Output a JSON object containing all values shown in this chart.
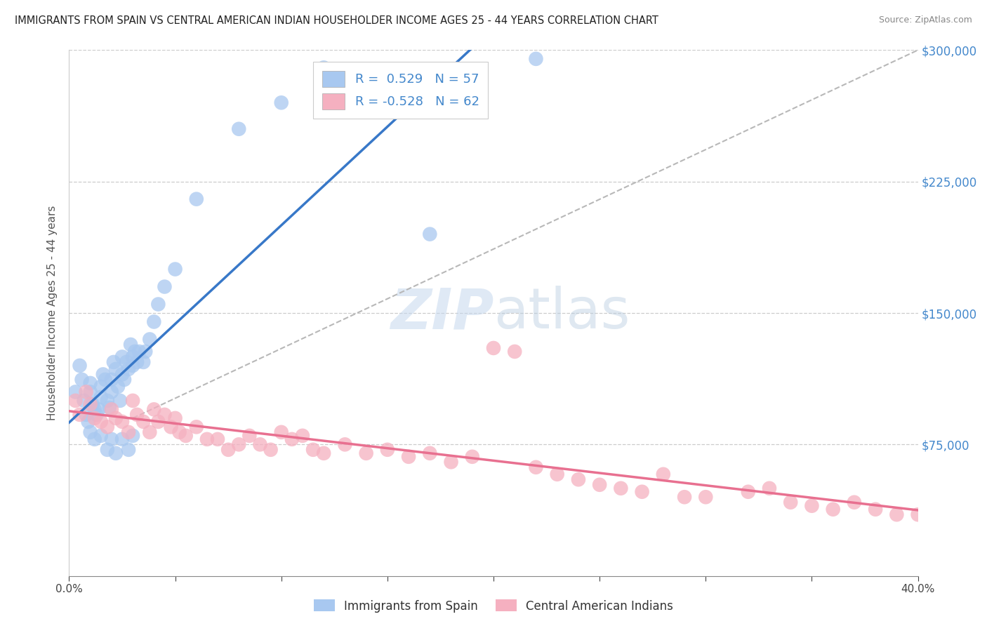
{
  "title": "IMMIGRANTS FROM SPAIN VS CENTRAL AMERICAN INDIAN HOUSEHOLDER INCOME AGES 25 - 44 YEARS CORRELATION CHART",
  "source": "Source: ZipAtlas.com",
  "ylabel": "Householder Income Ages 25 - 44 years",
  "xmin": 0.0,
  "xmax": 40.0,
  "ymin": 0,
  "ymax": 300000,
  "yticks": [
    0,
    75000,
    150000,
    225000,
    300000
  ],
  "ytick_labels": [
    "",
    "$75,000",
    "$150,000",
    "$225,000",
    "$300,000"
  ],
  "r_blue": 0.529,
  "n_blue": 57,
  "r_pink": -0.528,
  "n_pink": 62,
  "blue_color": "#a8c8f0",
  "pink_color": "#f5b0c0",
  "blue_line_color": "#3878c8",
  "pink_line_color": "#e87090",
  "dash_line_color": "#b8b8b8",
  "watermark_zip": "ZIP",
  "watermark_atlas": "atlas",
  "legend_label_blue": "Immigrants from Spain",
  "legend_label_pink": "Central American Indians",
  "blue_scatter_x": [
    0.3,
    0.5,
    0.6,
    0.7,
    0.8,
    0.9,
    1.0,
    1.0,
    1.1,
    1.2,
    1.3,
    1.4,
    1.5,
    1.5,
    1.6,
    1.7,
    1.8,
    1.9,
    2.0,
    2.0,
    2.1,
    2.2,
    2.3,
    2.4,
    2.5,
    2.5,
    2.6,
    2.7,
    2.8,
    2.9,
    3.0,
    3.0,
    3.1,
    3.2,
    3.3,
    3.5,
    3.6,
    3.8,
    4.0,
    4.2,
    4.5,
    5.0,
    1.0,
    1.2,
    1.5,
    1.8,
    2.0,
    2.2,
    2.5,
    2.8,
    3.0,
    6.0,
    8.0,
    10.0,
    12.0,
    17.0,
    22.0
  ],
  "blue_scatter_y": [
    105000,
    120000,
    112000,
    100000,
    92000,
    88000,
    105000,
    110000,
    98000,
    95000,
    92000,
    95000,
    108000,
    102000,
    115000,
    112000,
    100000,
    96000,
    112000,
    105000,
    122000,
    118000,
    108000,
    100000,
    115000,
    125000,
    112000,
    122000,
    118000,
    132000,
    125000,
    120000,
    128000,
    122000,
    128000,
    122000,
    128000,
    135000,
    145000,
    155000,
    165000,
    175000,
    82000,
    78000,
    80000,
    72000,
    78000,
    70000,
    78000,
    72000,
    80000,
    215000,
    255000,
    270000,
    290000,
    195000,
    295000
  ],
  "pink_scatter_x": [
    0.3,
    0.5,
    0.8,
    1.0,
    1.2,
    1.5,
    1.8,
    2.0,
    2.2,
    2.5,
    2.8,
    3.0,
    3.2,
    3.5,
    3.8,
    4.0,
    4.2,
    4.5,
    4.8,
    5.0,
    5.2,
    5.5,
    6.0,
    6.5,
    7.0,
    7.5,
    8.0,
    8.5,
    9.0,
    9.5,
    10.0,
    10.5,
    11.0,
    11.5,
    12.0,
    13.0,
    14.0,
    15.0,
    16.0,
    17.0,
    18.0,
    19.0,
    20.0,
    21.0,
    22.0,
    23.0,
    24.0,
    25.0,
    26.0,
    27.0,
    28.0,
    30.0,
    32.0,
    33.0,
    34.0,
    35.0,
    36.0,
    37.0,
    38.0,
    39.0,
    40.0,
    29.0
  ],
  "pink_scatter_y": [
    100000,
    92000,
    105000,
    98000,
    90000,
    88000,
    85000,
    95000,
    90000,
    88000,
    82000,
    100000,
    92000,
    88000,
    82000,
    95000,
    88000,
    92000,
    85000,
    90000,
    82000,
    80000,
    85000,
    78000,
    78000,
    72000,
    75000,
    80000,
    75000,
    72000,
    82000,
    78000,
    80000,
    72000,
    70000,
    75000,
    70000,
    72000,
    68000,
    70000,
    65000,
    68000,
    130000,
    128000,
    62000,
    58000,
    55000,
    52000,
    50000,
    48000,
    58000,
    45000,
    48000,
    50000,
    42000,
    40000,
    38000,
    42000,
    38000,
    35000,
    35000,
    45000
  ]
}
